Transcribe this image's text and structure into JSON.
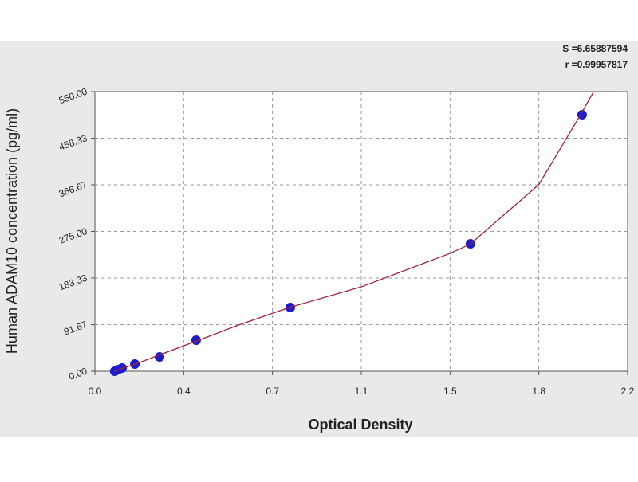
{
  "chart_data": {
    "type": "scatter",
    "x_label": "Optical Density",
    "y_label": "Human ADAM10 concentration (pg/ml)",
    "annotations": [
      "S =6.65887594",
      "r =0.99957817"
    ],
    "xlim": [
      0,
      2.2
    ],
    "xticks": [
      {
        "value": 0,
        "label": "0.0"
      },
      {
        "value": 0.3667,
        "label": "0.4"
      },
      {
        "value": 0.7333,
        "label": "0.7"
      },
      {
        "value": 1.1,
        "label": "1.1"
      },
      {
        "value": 1.4667,
        "label": "1.5"
      },
      {
        "value": 1.8333,
        "label": "1.8"
      },
      {
        "value": 2.2,
        "label": "2.2"
      }
    ],
    "ylim": [
      0,
      550
    ],
    "yticks": [
      {
        "value": 0,
        "label": "0.00"
      },
      {
        "value": 91.67,
        "label": "91.67"
      },
      {
        "value": 183.33,
        "label": "183.33"
      },
      {
        "value": 275,
        "label": "275.00"
      },
      {
        "value": 366.67,
        "label": "366.67"
      },
      {
        "value": 458.33,
        "label": "458.33"
      },
      {
        "value": 550,
        "label": "550.00"
      }
    ],
    "grid": true,
    "series": [
      {
        "kind": "points",
        "color": "#1c1cc8",
        "x": [
          0.082,
          0.096,
          0.112,
          0.165,
          0.267,
          0.418,
          0.807,
          1.551,
          2.012
        ],
        "values": [
          0,
          3.1,
          6.3,
          14.1,
          28.2,
          61.1,
          125.4,
          250.7,
          504.5
        ]
      },
      {
        "kind": "line",
        "color": "#a0203a",
        "x": [
          0.08,
          0.2,
          0.4,
          0.6,
          0.8,
          1.1,
          1.467,
          1.55,
          1.833,
          2.0,
          2.06
        ],
        "values": [
          0,
          20,
          56,
          92,
          125,
          166,
          232,
          250,
          367,
          500,
          550
        ]
      }
    ]
  }
}
